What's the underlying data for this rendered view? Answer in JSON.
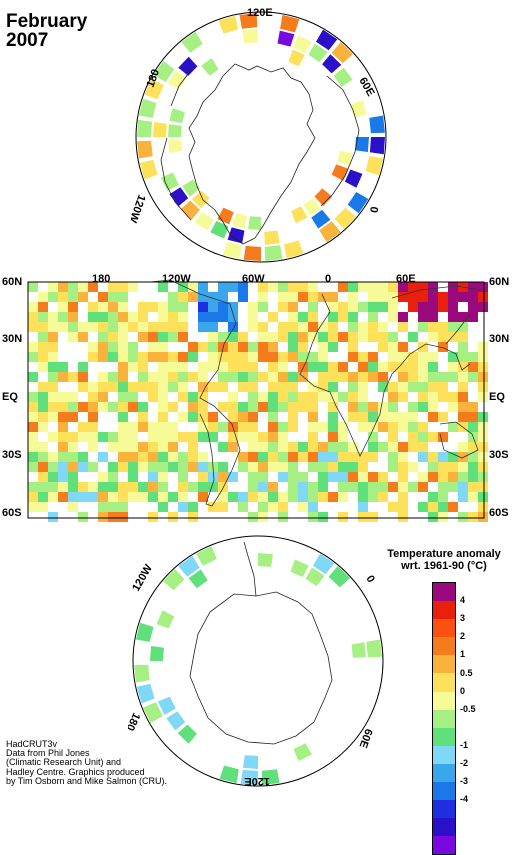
{
  "title": {
    "month": "February",
    "year": "2007"
  },
  "north_map": {
    "labels": [
      "120E",
      "60E",
      "0",
      "120W",
      "180"
    ]
  },
  "world_map": {
    "lon_labels": [
      "180",
      "120W",
      "60W",
      "0",
      "60E"
    ],
    "lat_labels": [
      "60N",
      "30N",
      "EQ",
      "30S",
      "60S"
    ]
  },
  "south_map": {
    "labels": [
      "120W",
      "0",
      "60E",
      "120E",
      "180"
    ]
  },
  "legend": {
    "title_line1": "Temperature anomaly",
    "title_line2": "wrt. 1961-90  (°C)",
    "colors": [
      "#9b0a7d",
      "#e8200c",
      "#fa5010",
      "#f47c1c",
      "#f9b23c",
      "#fde15a",
      "#f6fb98",
      "#a6ef82",
      "#5fe07a",
      "#7fd8f6",
      "#3aa6ec",
      "#1a78e8",
      "#1e2ee0",
      "#2a10c8",
      "#7a08e0"
    ],
    "labels": [
      "4",
      "3",
      "2",
      "1",
      "0.5",
      "0",
      "-0.5",
      "-1",
      "-2",
      "-3",
      "-4"
    ]
  },
  "credits": [
    "HadCRUT3v",
    "Data from Phil Jones",
    "(Climatic Research Unit) and",
    "Hadley Centre.  Graphics produced",
    "by Tim Osborn and Mike Salmon (CRU)."
  ]
}
